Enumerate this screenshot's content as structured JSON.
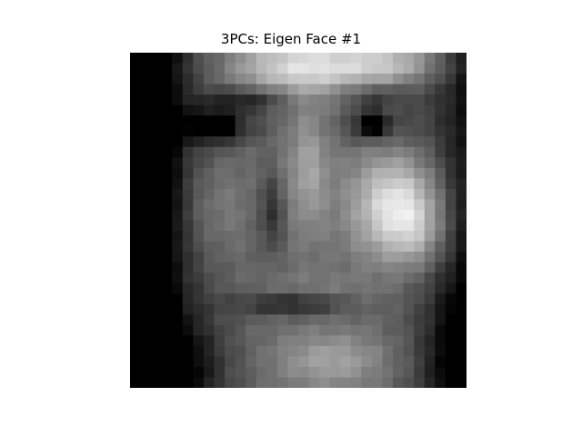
{
  "chart_data": {
    "type": "heatmap",
    "title": "3PCs: Eigen Face #1",
    "xlabel": "",
    "ylabel": "",
    "axis_visible": false,
    "colormap": "gray",
    "grid": false,
    "legend": "none",
    "rows": 32,
    "cols": 32
  }
}
